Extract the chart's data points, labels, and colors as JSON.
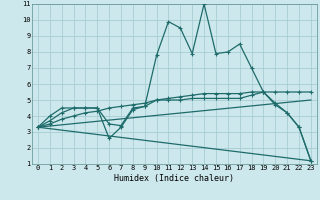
{
  "xlabel": "Humidex (Indice chaleur)",
  "bg_color": "#cde8ec",
  "grid_color": "#a8cdd4",
  "line_color": "#1e6b6b",
  "xlim": [
    -0.5,
    23.5
  ],
  "ylim": [
    1,
    11
  ],
  "xticks": [
    0,
    1,
    2,
    3,
    4,
    5,
    6,
    7,
    8,
    9,
    10,
    11,
    12,
    13,
    14,
    15,
    16,
    17,
    18,
    19,
    20,
    21,
    22,
    23
  ],
  "yticks": [
    1,
    2,
    3,
    4,
    5,
    6,
    7,
    8,
    9,
    10,
    11
  ],
  "lines": [
    {
      "x": [
        0,
        1,
        2,
        3,
        4,
        5,
        6,
        7,
        8,
        9,
        10,
        11,
        12,
        13,
        14,
        15,
        16,
        17,
        18,
        19,
        20,
        21,
        22,
        23
      ],
      "y": [
        3.3,
        4.0,
        4.5,
        4.5,
        4.5,
        4.5,
        2.6,
        3.3,
        4.4,
        4.6,
        7.8,
        9.9,
        9.5,
        7.9,
        11.0,
        7.9,
        8.0,
        8.5,
        7.0,
        5.5,
        4.7,
        4.2,
        3.3,
        1.2
      ],
      "marker": true
    },
    {
      "x": [
        0,
        1,
        2,
        3,
        4,
        5,
        6,
        7,
        8,
        9,
        10,
        11,
        12,
        13,
        14,
        15,
        16,
        17,
        18,
        19,
        20,
        21,
        22,
        23
      ],
      "y": [
        3.3,
        3.5,
        3.8,
        4.0,
        4.2,
        4.3,
        4.5,
        4.6,
        4.7,
        4.8,
        5.0,
        5.1,
        5.2,
        5.3,
        5.4,
        5.4,
        5.4,
        5.4,
        5.5,
        5.5,
        5.5,
        5.5,
        5.5,
        5.5
      ],
      "marker": true
    },
    {
      "x": [
        0,
        1,
        2,
        3,
        4,
        5,
        6,
        7,
        8,
        9,
        10,
        11,
        12,
        13,
        14,
        15,
        16,
        17,
        18,
        19,
        20,
        21,
        22,
        23
      ],
      "y": [
        3.3,
        3.7,
        4.2,
        4.5,
        4.5,
        4.5,
        3.5,
        3.4,
        4.5,
        4.6,
        5.0,
        5.0,
        5.0,
        5.1,
        5.1,
        5.1,
        5.1,
        5.1,
        5.3,
        5.5,
        4.8,
        4.2,
        3.3,
        1.2
      ],
      "marker": true
    },
    {
      "x": [
        0,
        23
      ],
      "y": [
        3.3,
        5.0
      ],
      "marker": false
    },
    {
      "x": [
        0,
        23
      ],
      "y": [
        3.3,
        1.2
      ],
      "marker": false
    }
  ]
}
